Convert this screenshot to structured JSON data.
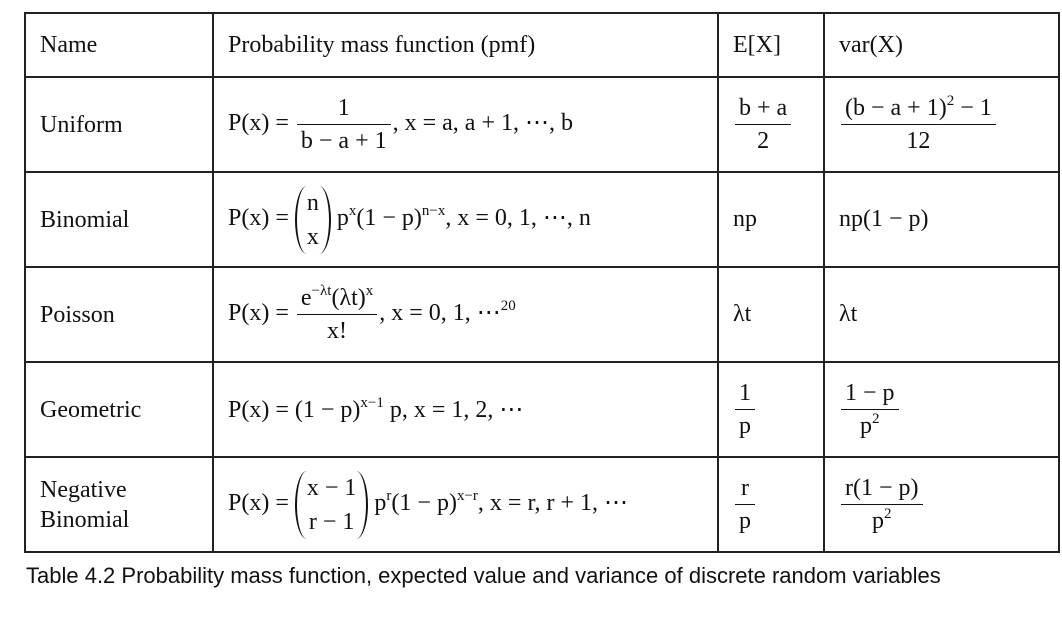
{
  "table": {
    "header": [
      "Name",
      "Probability mass function (pmf)",
      "E[X]",
      "var(X)"
    ],
    "rows": [
      {
        "name": "Uniform",
        "pmf": [
          "P(x) = ",
          {
            "frac": [
              [
                "1"
              ],
              [
                "b − a + 1"
              ]
            ]
          },
          ",    x = a, a + 1, ⋯, b"
        ],
        "mean": [
          {
            "frac": [
              [
                "b + a"
              ],
              [
                "2"
              ]
            ]
          }
        ],
        "var": [
          {
            "frac": [
              [
                "(b − a + 1)",
                {
                  "sup": "2"
                },
                " − 1"
              ],
              [
                "12"
              ]
            ]
          }
        ]
      },
      {
        "name": "Binomial",
        "pmf": [
          "P(x) = ",
          {
            "binom": [
              [
                "n"
              ],
              [
                "x"
              ]
            ]
          },
          " p",
          {
            "sup": "x"
          },
          "(1 − p)",
          {
            "sup": "n−x"
          },
          ",    x = 0, 1, ⋯, n"
        ],
        "mean": [
          "np"
        ],
        "var": [
          "np(1 − p)"
        ]
      },
      {
        "name": "Poisson",
        "pmf": [
          "P(x) = ",
          {
            "frac": [
              [
                "e",
                {
                  "sup": "−λt"
                },
                "(λt)",
                {
                  "sup": "x"
                }
              ],
              [
                "x!"
              ]
            ]
          },
          ",    x = 0, 1, ⋯",
          {
            "sup": "20"
          }
        ],
        "mean": [
          "λt"
        ],
        "var": [
          "λt"
        ]
      },
      {
        "name": "Geometric",
        "pmf": [
          "P(x) = (1 − p)",
          {
            "sup": "x−1"
          },
          " p,  x = 1, 2, ⋯"
        ],
        "mean": [
          {
            "frac": [
              [
                "1"
              ],
              [
                "p"
              ]
            ]
          }
        ],
        "var": [
          {
            "frac": [
              [
                "1 − p"
              ],
              [
                "p",
                {
                  "sup": "2"
                }
              ]
            ]
          }
        ]
      },
      {
        "name": "Negative\nBinomial",
        "pmf": [
          "P(x) = ",
          {
            "binom": [
              [
                "x − 1"
              ],
              [
                "r − 1"
              ]
            ]
          },
          " p",
          {
            "sup": "r"
          },
          "(1 − p)",
          {
            "sup": "x−r"
          },
          ",   x = r, r + 1, ⋯"
        ],
        "mean": [
          {
            "frac": [
              [
                "r"
              ],
              [
                "p"
              ]
            ]
          }
        ],
        "var": [
          {
            "frac": [
              [
                "r(1 − p)"
              ],
              [
                "p",
                {
                  "sup": "2"
                }
              ]
            ]
          }
        ]
      }
    ],
    "caption": "Table 4.2 Probability mass function, expected value and variance of discrete random variables"
  }
}
